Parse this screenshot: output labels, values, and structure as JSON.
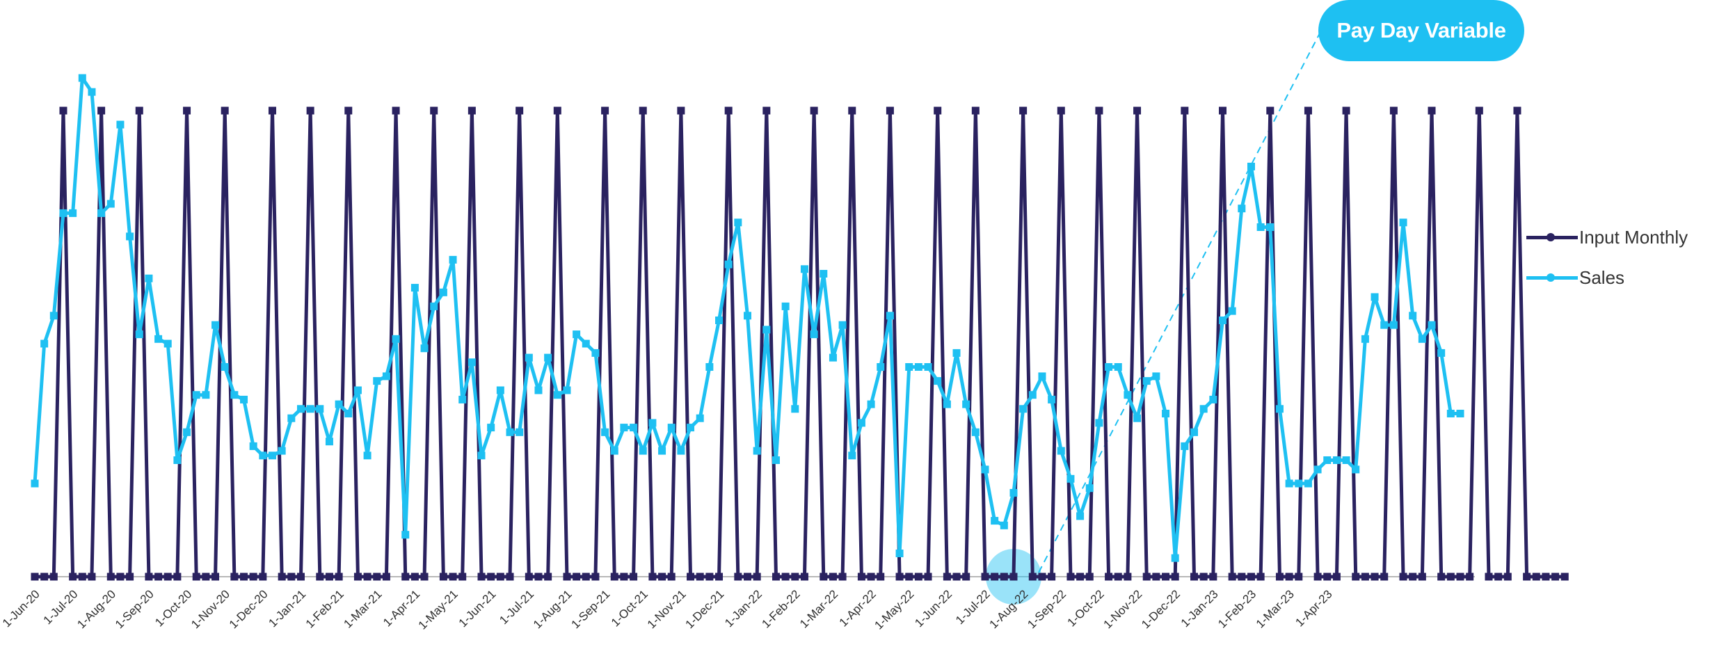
{
  "chart_data": {
    "type": "line",
    "title": "",
    "xlabel": "",
    "ylabel": "",
    "ylim": [
      0,
      1.06
    ],
    "x_tick_labels": [
      "1-Jun-20",
      "1-Jul-20",
      "1-Aug-20",
      "1-Sep-20",
      "1-Oct-20",
      "1-Nov-20",
      "1-Dec-20",
      "1-Jan-21",
      "1-Feb-21",
      "1-Mar-21",
      "1-Apr-21",
      "1-May-21",
      "1-Jun-21",
      "1-Jul-21",
      "1-Aug-21",
      "1-Sep-21",
      "1-Oct-21",
      "1-Nov-21",
      "1-Dec-21",
      "1-Jan-22",
      "1-Feb-22",
      "1-Mar-22",
      "1-Apr-22",
      "1-May-22",
      "1-Jun-22",
      "1-Jul-22",
      "1-Aug-22",
      "1-Sep-22",
      "1-Oct-22",
      "1-Nov-22",
      "1-Dec-22",
      "1-Jan-23",
      "1-Feb-23",
      "1-Mar-23",
      "1-Apr-23"
    ],
    "points_per_month": 4,
    "series": [
      {
        "name": "Input Monthly",
        "color": "#2a2260",
        "values": [
          0,
          0,
          0,
          1,
          0,
          0,
          0,
          1,
          0,
          0,
          0,
          1,
          0,
          0,
          0,
          0,
          1,
          0,
          0,
          0,
          1,
          0,
          0,
          0,
          0,
          1,
          0,
          0,
          0,
          1,
          0,
          0,
          0,
          1,
          0,
          0,
          0,
          0,
          1,
          0,
          0,
          0,
          1,
          0,
          0,
          0,
          1,
          0,
          0,
          0,
          0,
          1,
          0,
          0,
          0,
          1,
          0,
          0,
          0,
          0,
          1,
          0,
          0,
          0,
          1,
          0,
          0,
          0,
          1,
          0,
          0,
          0,
          0,
          1,
          0,
          0,
          0,
          1,
          0,
          0,
          0,
          0,
          1,
          0,
          0,
          0,
          1,
          0,
          0,
          0,
          1,
          0,
          0,
          0,
          0,
          1,
          0,
          0,
          0,
          1,
          0,
          0,
          0,
          0,
          1,
          0,
          0,
          0,
          1,
          0,
          0,
          0,
          1,
          0,
          0,
          0,
          1,
          0,
          0,
          0,
          0,
          1,
          0,
          0,
          0,
          1,
          0,
          0,
          0,
          0,
          1,
          0,
          0,
          0,
          1,
          0,
          0,
          0,
          1,
          0,
          0,
          0,
          0,
          1,
          0,
          0,
          0,
          1,
          0,
          0,
          0,
          0,
          1,
          0,
          0,
          0,
          1,
          0,
          0,
          0,
          0,
          0
        ]
      },
      {
        "name": "Sales",
        "color": "#1ec0f2",
        "values": [
          0.2,
          0.5,
          0.56,
          0.78,
          0.78,
          1.07,
          1.04,
          0.78,
          0.8,
          0.97,
          0.73,
          0.52,
          0.64,
          0.51,
          0.5,
          0.25,
          0.31,
          0.39,
          0.39,
          0.54,
          0.45,
          0.39,
          0.38,
          0.28,
          0.26,
          0.26,
          0.27,
          0.34,
          0.36,
          0.36,
          0.36,
          0.29,
          0.37,
          0.35,
          0.4,
          0.26,
          0.42,
          0.43,
          0.51,
          0.09,
          0.62,
          0.49,
          0.58,
          0.61,
          0.68,
          0.38,
          0.46,
          0.26,
          0.32,
          0.4,
          0.31,
          0.31,
          0.47,
          0.4,
          0.47,
          0.39,
          0.4,
          0.52,
          0.5,
          0.48,
          0.31,
          0.27,
          0.32,
          0.32,
          0.27,
          0.33,
          0.27,
          0.32,
          0.27,
          0.32,
          0.34,
          0.45,
          0.55,
          0.67,
          0.76,
          0.56,
          0.27,
          0.53,
          0.25,
          0.58,
          0.36,
          0.66,
          0.52,
          0.65,
          0.47,
          0.54,
          0.26,
          0.33,
          0.37,
          0.45,
          0.56,
          0.05,
          0.45,
          0.45,
          0.45,
          0.42,
          0.37,
          0.48,
          0.37,
          0.31,
          0.23,
          0.12,
          0.11,
          0.18,
          0.36,
          0.39,
          0.43,
          0.38,
          0.27,
          0.21,
          0.13,
          0.19,
          0.33,
          0.45,
          0.45,
          0.39,
          0.34,
          0.42,
          0.43,
          0.35,
          0.04,
          0.28,
          0.31,
          0.36,
          0.38,
          0.55,
          0.57,
          0.79,
          0.88,
          0.75,
          0.75,
          0.36,
          0.2,
          0.2,
          0.2,
          0.23,
          0.25,
          0.25,
          0.25,
          0.23,
          0.51,
          0.6,
          0.54,
          0.54,
          0.76,
          0.56,
          0.51,
          0.54,
          0.48,
          0.35,
          0.35
        ]
      }
    ],
    "annotations": [
      {
        "text": "Pay Day Variable",
        "series": "Input Monthly",
        "point_index": 103,
        "color": "#1ec0f2"
      }
    ],
    "legend_position": "right"
  },
  "legend": {
    "items": [
      {
        "label": "Input Monthly",
        "color": "#2a2260"
      },
      {
        "label": "Sales",
        "color": "#1ec0f2"
      }
    ]
  },
  "annotation": {
    "label": "Pay Day Variable"
  }
}
